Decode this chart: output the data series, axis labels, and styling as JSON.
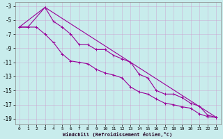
{
  "xlabel": "Windchill (Refroidissement éolien,°C)",
  "background_color": "#c8ecec",
  "grid_color": "#b0b0b0",
  "line_color": "#990099",
  "xlim": [
    -0.5,
    23.5
  ],
  "ylim": [
    -19.8,
    -2.5
  ],
  "xticks": [
    0,
    1,
    2,
    3,
    4,
    5,
    6,
    7,
    8,
    9,
    10,
    11,
    12,
    13,
    14,
    15,
    16,
    17,
    18,
    19,
    20,
    21,
    22,
    23
  ],
  "yticks": [
    -3,
    -5,
    -7,
    -9,
    -11,
    -13,
    -15,
    -17,
    -19
  ],
  "line1_x": [
    0,
    1,
    3,
    4,
    5,
    6,
    7,
    8,
    9,
    10,
    11,
    12,
    13,
    14,
    15,
    16,
    17,
    18,
    19,
    20,
    21,
    22,
    23
  ],
  "line1_y": [
    -6.0,
    -6.0,
    -3.2,
    -5.2,
    -6.0,
    -7.0,
    -8.5,
    -8.5,
    -9.2,
    -9.2,
    -10.0,
    -10.5,
    -11.0,
    -12.7,
    -13.2,
    -15.0,
    -15.5,
    -15.5,
    -16.0,
    -16.8,
    -17.2,
    -18.5,
    -18.8
  ],
  "line2_x": [
    0,
    1,
    2,
    3,
    4,
    5,
    6,
    7,
    8,
    9,
    10,
    11,
    12,
    13,
    14,
    15,
    16,
    17,
    18,
    19,
    20,
    21,
    22,
    23
  ],
  "line2_y": [
    -6.0,
    -6.0,
    -6.0,
    -7.0,
    -8.2,
    -9.8,
    -10.8,
    -11.0,
    -11.2,
    -12.0,
    -12.5,
    -12.8,
    -13.2,
    -14.5,
    -15.2,
    -15.5,
    -16.2,
    -16.8,
    -17.0,
    -17.3,
    -17.5,
    -18.3,
    -18.7,
    -18.8
  ],
  "line3_x": [
    0,
    3,
    23
  ],
  "line3_y": [
    -6.0,
    -3.2,
    -18.8
  ]
}
